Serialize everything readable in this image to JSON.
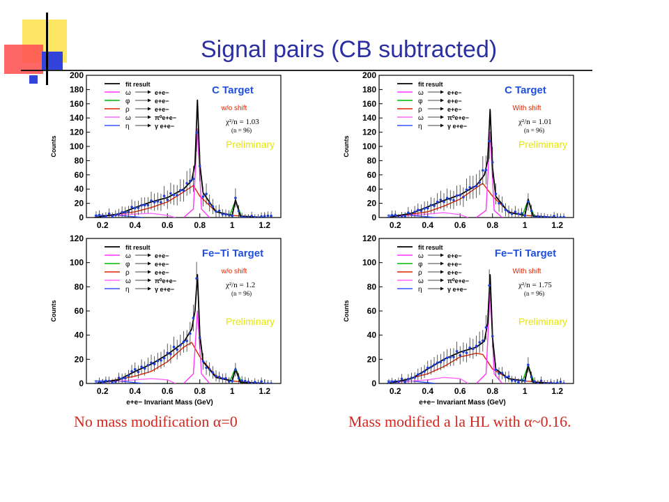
{
  "title": "Signal pairs (CB subtracted)",
  "captions": {
    "left": "No mass modification α=0",
    "right": "Mass modified a la HL with α~0.16."
  },
  "colors": {
    "title": "#2b2fa0",
    "caption": "#d0281f",
    "fit": "#000000",
    "omega": "#ff33ff",
    "phi": "#00bb00",
    "rho": "#dd2200",
    "omega_dalitz": "#ff66ff",
    "eta": "#3355ff",
    "points": "#1f3fd6",
    "target_label": "#1f4fe0",
    "shift_label": "#dd2200",
    "preliminary": "#e6e600",
    "deco_yellow": "#ffe766",
    "deco_red": "#ff4444",
    "deco_blue": "#3344dd"
  },
  "legend": {
    "fit_label": "fit result",
    "rows": [
      {
        "sym": "ω",
        "decay": "e+e−",
        "color": "#ff33ff"
      },
      {
        "sym": "φ",
        "decay": "e+e−",
        "color": "#00bb00"
      },
      {
        "sym": "ρ",
        "decay": "e+e−",
        "color": "#dd2200"
      },
      {
        "sym": "ω",
        "decay": "π⁰e+e−",
        "color": "#ff66ff"
      },
      {
        "sym": "η",
        "decay": "γ e+e−",
        "color": "#3355ff"
      }
    ]
  },
  "panels": [
    {
      "target": "C Target",
      "shift": "w/o shift",
      "chi": "χ²/n = 1.03",
      "n": "(n = 96)",
      "preliminary": "Preliminary",
      "ylabel": "Counts",
      "xlabel": "",
      "yticks": [
        "0",
        "20",
        "40",
        "60",
        "80",
        "100",
        "120",
        "140",
        "160",
        "180",
        "200"
      ],
      "xticks": [
        "0.2",
        "0.4",
        "0.6",
        "0.8",
        "1",
        "1.2"
      ]
    },
    {
      "target": "C Target",
      "shift": "With shift",
      "chi": "χ²/n = 1.01",
      "n": "(n = 96)",
      "preliminary": "Preliminary",
      "ylabel": "Counts",
      "xlabel": "",
      "yticks": [
        "0",
        "20",
        "40",
        "60",
        "80",
        "100",
        "120",
        "140",
        "160",
        "180",
        "200"
      ],
      "xticks": [
        "0.2",
        "0.4",
        "0.6",
        "0.8",
        "1",
        "1.2"
      ]
    },
    {
      "target": "Fe−Ti Target",
      "shift": "w/o shift",
      "chi": "χ²/n = 1.2",
      "n": "(n = 96)",
      "preliminary": "Preliminary",
      "ylabel": "Counts",
      "xlabel": "e+e− Invariant Mass (GeV)",
      "yticks": [
        "0",
        "20",
        "40",
        "60",
        "80",
        "100",
        "120"
      ],
      "xticks": [
        "0.2",
        "0.4",
        "0.6",
        "0.8",
        "1",
        "1.2"
      ]
    },
    {
      "target": "Fe−Ti Target",
      "shift": "With shift",
      "chi": "χ²/n = 1.75",
      "n": "(n = 96)",
      "preliminary": "Preliminary",
      "ylabel": "Counts",
      "xlabel": "e+e− Invariant Mass (GeV)",
      "yticks": [
        "0",
        "20",
        "40",
        "60",
        "80",
        "100",
        "120"
      ],
      "xticks": [
        "0.2",
        "0.4",
        "0.6",
        "0.8",
        "1",
        "1.2"
      ]
    }
  ],
  "chart_data": [
    {
      "type": "line",
      "title": "C Target",
      "xlabel": "",
      "ylabel": "Counts",
      "xlim": [
        0.1,
        1.3
      ],
      "ylim": [
        0,
        200
      ],
      "series": [
        {
          "name": "fit result",
          "x": [
            0.15,
            0.3,
            0.4,
            0.5,
            0.6,
            0.7,
            0.75,
            0.77,
            0.785,
            0.8,
            0.82,
            0.9,
            1.0,
            1.02,
            1.05,
            1.2
          ],
          "values": [
            0,
            5,
            14,
            22,
            28,
            40,
            52,
            75,
            165,
            75,
            35,
            8,
            3,
            25,
            2,
            0
          ]
        },
        {
          "name": "ω → e+e−",
          "x": [
            0.7,
            0.76,
            0.785,
            0.81,
            0.86
          ],
          "values": [
            0,
            12,
            125,
            12,
            0
          ]
        },
        {
          "name": "φ → e+e−",
          "x": [
            0.98,
            1.02,
            1.06
          ],
          "values": [
            0,
            24,
            0
          ]
        },
        {
          "name": "ρ → e+e−",
          "x": [
            0.2,
            0.4,
            0.5,
            0.6,
            0.7,
            0.76,
            0.8,
            0.9,
            1.0,
            1.2
          ],
          "values": [
            2,
            8,
            14,
            22,
            36,
            45,
            30,
            8,
            3,
            0
          ]
        },
        {
          "name": "ω → π⁰e+e−",
          "x": [
            0.2,
            0.4,
            0.5,
            0.6,
            0.65
          ],
          "values": [
            2,
            5,
            6,
            3,
            0
          ]
        },
        {
          "name": "η → γ e+e−",
          "x": [
            0.15,
            0.3,
            0.45
          ],
          "values": [
            3,
            3,
            0
          ]
        }
      ]
    },
    {
      "type": "line",
      "title": "C Target",
      "xlabel": "",
      "ylabel": "Counts",
      "xlim": [
        0.1,
        1.3
      ],
      "ylim": [
        0,
        200
      ],
      "series": [
        {
          "name": "fit result",
          "x": [
            0.15,
            0.3,
            0.4,
            0.5,
            0.6,
            0.7,
            0.75,
            0.77,
            0.785,
            0.8,
            0.82,
            0.9,
            1.0,
            1.02,
            1.05,
            1.2
          ],
          "values": [
            0,
            6,
            15,
            24,
            32,
            45,
            60,
            80,
            152,
            70,
            30,
            7,
            3,
            26,
            2,
            0
          ]
        },
        {
          "name": "ω → e+e−",
          "x": [
            0.7,
            0.76,
            0.785,
            0.81,
            0.86
          ],
          "values": [
            0,
            10,
            120,
            10,
            0
          ]
        },
        {
          "name": "φ → e+e−",
          "x": [
            0.98,
            1.02,
            1.06
          ],
          "values": [
            0,
            25,
            0
          ]
        },
        {
          "name": "ρ → e+e−",
          "x": [
            0.2,
            0.4,
            0.5,
            0.6,
            0.7,
            0.74,
            0.8,
            0.9,
            1.0,
            1.2
          ],
          "values": [
            2,
            8,
            16,
            26,
            42,
            48,
            30,
            8,
            3,
            0
          ]
        },
        {
          "name": "ω → π⁰e+e−",
          "x": [
            0.2,
            0.4,
            0.5,
            0.6,
            0.65
          ],
          "values": [
            2,
            5,
            7,
            4,
            0
          ]
        },
        {
          "name": "η → γ e+e−",
          "x": [
            0.15,
            0.3,
            0.45
          ],
          "values": [
            3,
            3,
            0
          ]
        }
      ]
    },
    {
      "type": "line",
      "title": "Fe−Ti Target",
      "xlabel": "e+e− Invariant Mass (GeV)",
      "ylabel": "Counts",
      "xlim": [
        0.1,
        1.3
      ],
      "ylim": [
        0,
        120
      ],
      "series": [
        {
          "name": "fit result",
          "x": [
            0.15,
            0.3,
            0.4,
            0.5,
            0.6,
            0.7,
            0.75,
            0.77,
            0.785,
            0.8,
            0.82,
            0.9,
            1.0,
            1.02,
            1.05,
            1.2
          ],
          "values": [
            0,
            3,
            10,
            16,
            24,
            34,
            45,
            60,
            90,
            40,
            18,
            5,
            2,
            12,
            1,
            0
          ]
        },
        {
          "name": "ω → e+e−",
          "x": [
            0.7,
            0.76,
            0.785,
            0.81,
            0.86
          ],
          "values": [
            0,
            8,
            60,
            8,
            0
          ]
        },
        {
          "name": "φ → e+e−",
          "x": [
            0.98,
            1.02,
            1.06
          ],
          "values": [
            0,
            13,
            0
          ]
        },
        {
          "name": "ρ → e+e−",
          "x": [
            0.2,
            0.4,
            0.5,
            0.6,
            0.7,
            0.75,
            0.8,
            0.9,
            1.0,
            1.2
          ],
          "values": [
            1,
            6,
            10,
            18,
            30,
            34,
            22,
            6,
            2,
            0
          ]
        },
        {
          "name": "ω → π⁰e+e−",
          "x": [
            0.2,
            0.4,
            0.5,
            0.6,
            0.65
          ],
          "values": [
            1,
            3,
            4,
            3,
            0
          ]
        },
        {
          "name": "η → γ e+e−",
          "x": [
            0.15,
            0.3,
            0.45
          ],
          "values": [
            2,
            2,
            0
          ]
        }
      ]
    },
    {
      "type": "line",
      "title": "Fe−Ti Target",
      "xlabel": "e+e− Invariant Mass (GeV)",
      "ylabel": "Counts",
      "xlim": [
        0.1,
        1.3
      ],
      "ylim": [
        0,
        120
      ],
      "series": [
        {
          "name": "fit result",
          "x": [
            0.15,
            0.3,
            0.4,
            0.5,
            0.6,
            0.7,
            0.75,
            0.77,
            0.785,
            0.8,
            0.82,
            0.9,
            1.0,
            1.02,
            1.05,
            1.2
          ],
          "values": [
            0,
            4,
            12,
            20,
            26,
            30,
            35,
            50,
            90,
            38,
            12,
            4,
            2,
            15,
            1,
            0
          ]
        },
        {
          "name": "ω → e+e−",
          "x": [
            0.7,
            0.76,
            0.785,
            0.81,
            0.86
          ],
          "values": [
            0,
            8,
            76,
            8,
            0
          ]
        },
        {
          "name": "φ → e+e−",
          "x": [
            0.98,
            1.02,
            1.06
          ],
          "values": [
            0,
            15,
            0
          ]
        },
        {
          "name": "ρ → e+e−",
          "x": [
            0.2,
            0.4,
            0.5,
            0.6,
            0.7,
            0.74,
            0.8,
            0.9,
            1.0,
            1.2
          ],
          "values": [
            1,
            8,
            14,
            22,
            25,
            24,
            12,
            4,
            2,
            0
          ]
        },
        {
          "name": "ω → π⁰e+e−",
          "x": [
            0.2,
            0.4,
            0.5,
            0.6,
            0.65
          ],
          "values": [
            1,
            3,
            5,
            4,
            0
          ]
        },
        {
          "name": "η → γ e+e−",
          "x": [
            0.15,
            0.3,
            0.45
          ],
          "values": [
            2,
            2,
            0
          ]
        }
      ]
    }
  ]
}
